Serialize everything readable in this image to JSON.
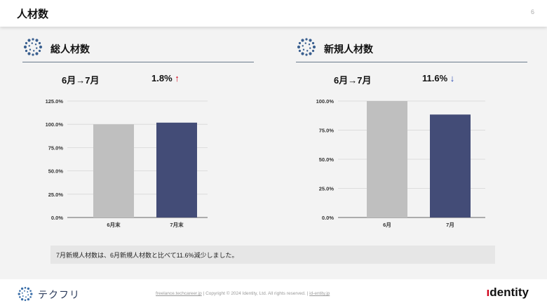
{
  "header": {
    "title": "人材数",
    "page_number": "6"
  },
  "sections": [
    {
      "title": "総人材数",
      "period": "6月→7月",
      "change": "1.8%",
      "direction_arrow": "↑",
      "icon": "dots-circle-icon"
    },
    {
      "title": "新規人材数",
      "period": "6月→7月",
      "change": "11.6%",
      "direction_arrow": "↓",
      "icon": "dots-circle-icon"
    }
  ],
  "chart_data": [
    {
      "type": "bar",
      "categories": [
        "6月末",
        "7月末"
      ],
      "values": [
        100.0,
        101.8
      ],
      "yticks": [
        "0.0%",
        "25.0%",
        "50.0%",
        "75.0%",
        "100.0%",
        "125.0%"
      ],
      "ylim": [
        0,
        125
      ],
      "bar_colors": [
        "#bfbfbf",
        "#434c77"
      ],
      "grid": true
    },
    {
      "type": "bar",
      "categories": [
        "6月",
        "7月"
      ],
      "values": [
        100.0,
        88.4
      ],
      "yticks": [
        "0.0%",
        "25.0%",
        "50.0%",
        "75.0%",
        "100.0%"
      ],
      "ylim": [
        0,
        100
      ],
      "bar_colors": [
        "#bfbfbf",
        "#434c77"
      ],
      "grid": true
    }
  ],
  "note": "7月新規人材数は、6月新規人材数と比べて11.6%減少しました。",
  "footer": {
    "logo_text": "テクフリ",
    "link1": "freelance.techcareer.jp",
    "sep1": "|",
    "copyright": "Copyright © 2024 Identity, Ltd. All rights reserved.",
    "sep2": "|",
    "link2": "id-entity.jp",
    "brand_prefix": "ı",
    "brand_rest": "dentity"
  }
}
